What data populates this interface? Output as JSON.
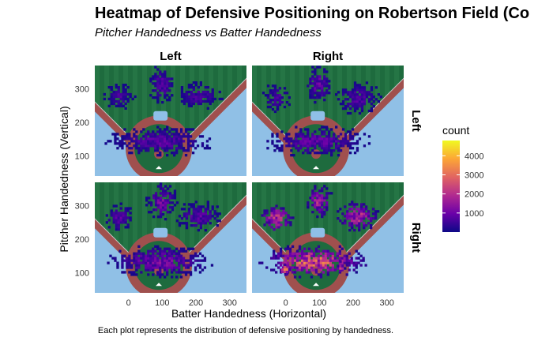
{
  "title": "Heatmap of Defensive Positioning on Robertson Field (Co",
  "subtitle": "Pitcher Handedness vs Batter Handedness",
  "caption": "Each plot represents the distribution of defensive positioning by handedness.",
  "colors": {
    "grass_dark": "#1e6b3e",
    "grass_light": "#2c7d4a",
    "dirt": "#a0504e",
    "sky": "#90c0e6",
    "base": "#8fbfe8",
    "foul_line": "#c8c8c8",
    "strip_bg": "#ffffff"
  },
  "chart_data": {
    "type": "heatmap",
    "xlabel": "Batter Handedness (Horizontal)",
    "ylabel": "Pitcher Handedness (Vertical)",
    "xlim": [
      -100,
      350
    ],
    "ylim": [
      40,
      370
    ],
    "x_ticks": [
      0,
      100,
      200,
      300
    ],
    "y_ticks": [
      100,
      200,
      300
    ],
    "col_facets": [
      "Left",
      "Right"
    ],
    "row_facets": [
      "Left",
      "Right"
    ],
    "legend": {
      "title": "count",
      "range": [
        0,
        4800
      ],
      "ticks": [
        1000,
        2000,
        3000,
        4000
      ],
      "colors": [
        "#0d0887",
        "#6a00a8",
        "#b12a90",
        "#e16462",
        "#fca636",
        "#f0f921"
      ]
    },
    "panels": [
      {
        "col": "Left",
        "row": "Left",
        "clusters": [
          {
            "name": "center field",
            "x": 95,
            "y": 310,
            "sx": 18,
            "sy": 25,
            "peak": 900
          },
          {
            "name": "left field",
            "x": -30,
            "y": 275,
            "sx": 20,
            "sy": 18,
            "peak": 650
          },
          {
            "name": "right field",
            "x": 205,
            "y": 275,
            "sx": 30,
            "sy": 18,
            "peak": 700
          },
          {
            "name": "infield",
            "x": 90,
            "y": 140,
            "sx": 70,
            "sy": 20,
            "peak": 900
          }
        ]
      },
      {
        "col": "Right",
        "row": "Left",
        "clusters": [
          {
            "name": "center field",
            "x": 95,
            "y": 310,
            "sx": 18,
            "sy": 25,
            "peak": 1100
          },
          {
            "name": "left field",
            "x": -30,
            "y": 270,
            "sx": 18,
            "sy": 20,
            "peak": 750
          },
          {
            "name": "right field",
            "x": 210,
            "y": 270,
            "sx": 30,
            "sy": 22,
            "peak": 800
          },
          {
            "name": "infield",
            "x": 90,
            "y": 140,
            "sx": 70,
            "sy": 20,
            "peak": 1000
          }
        ]
      },
      {
        "col": "Left",
        "row": "Right",
        "clusters": [
          {
            "name": "center field",
            "x": 95,
            "y": 310,
            "sx": 20,
            "sy": 25,
            "peak": 1300
          },
          {
            "name": "left field",
            "x": -30,
            "y": 260,
            "sx": 20,
            "sy": 20,
            "peak": 900
          },
          {
            "name": "right field",
            "x": 205,
            "y": 265,
            "sx": 30,
            "sy": 20,
            "peak": 900
          },
          {
            "name": "infield",
            "x": 90,
            "y": 130,
            "sx": 70,
            "sy": 22,
            "peak": 1300
          }
        ]
      },
      {
        "col": "Right",
        "row": "Right",
        "clusters": [
          {
            "name": "center field",
            "x": 95,
            "y": 310,
            "sx": 18,
            "sy": 22,
            "peak": 2000
          },
          {
            "name": "left field",
            "x": -30,
            "y": 260,
            "sx": 22,
            "sy": 20,
            "peak": 2600
          },
          {
            "name": "right field",
            "x": 210,
            "y": 265,
            "sx": 28,
            "sy": 20,
            "peak": 2300
          },
          {
            "name": "infield",
            "x": 80,
            "y": 130,
            "sx": 70,
            "sy": 22,
            "peak": 3200
          },
          {
            "name": "first base hot spot",
            "x": -5,
            "y": 105,
            "sx": 6,
            "sy": 8,
            "peak": 4500
          },
          {
            "name": "third base hot spot",
            "x": 160,
            "y": 115,
            "sx": 6,
            "sy": 8,
            "peak": 3000
          }
        ]
      }
    ]
  }
}
